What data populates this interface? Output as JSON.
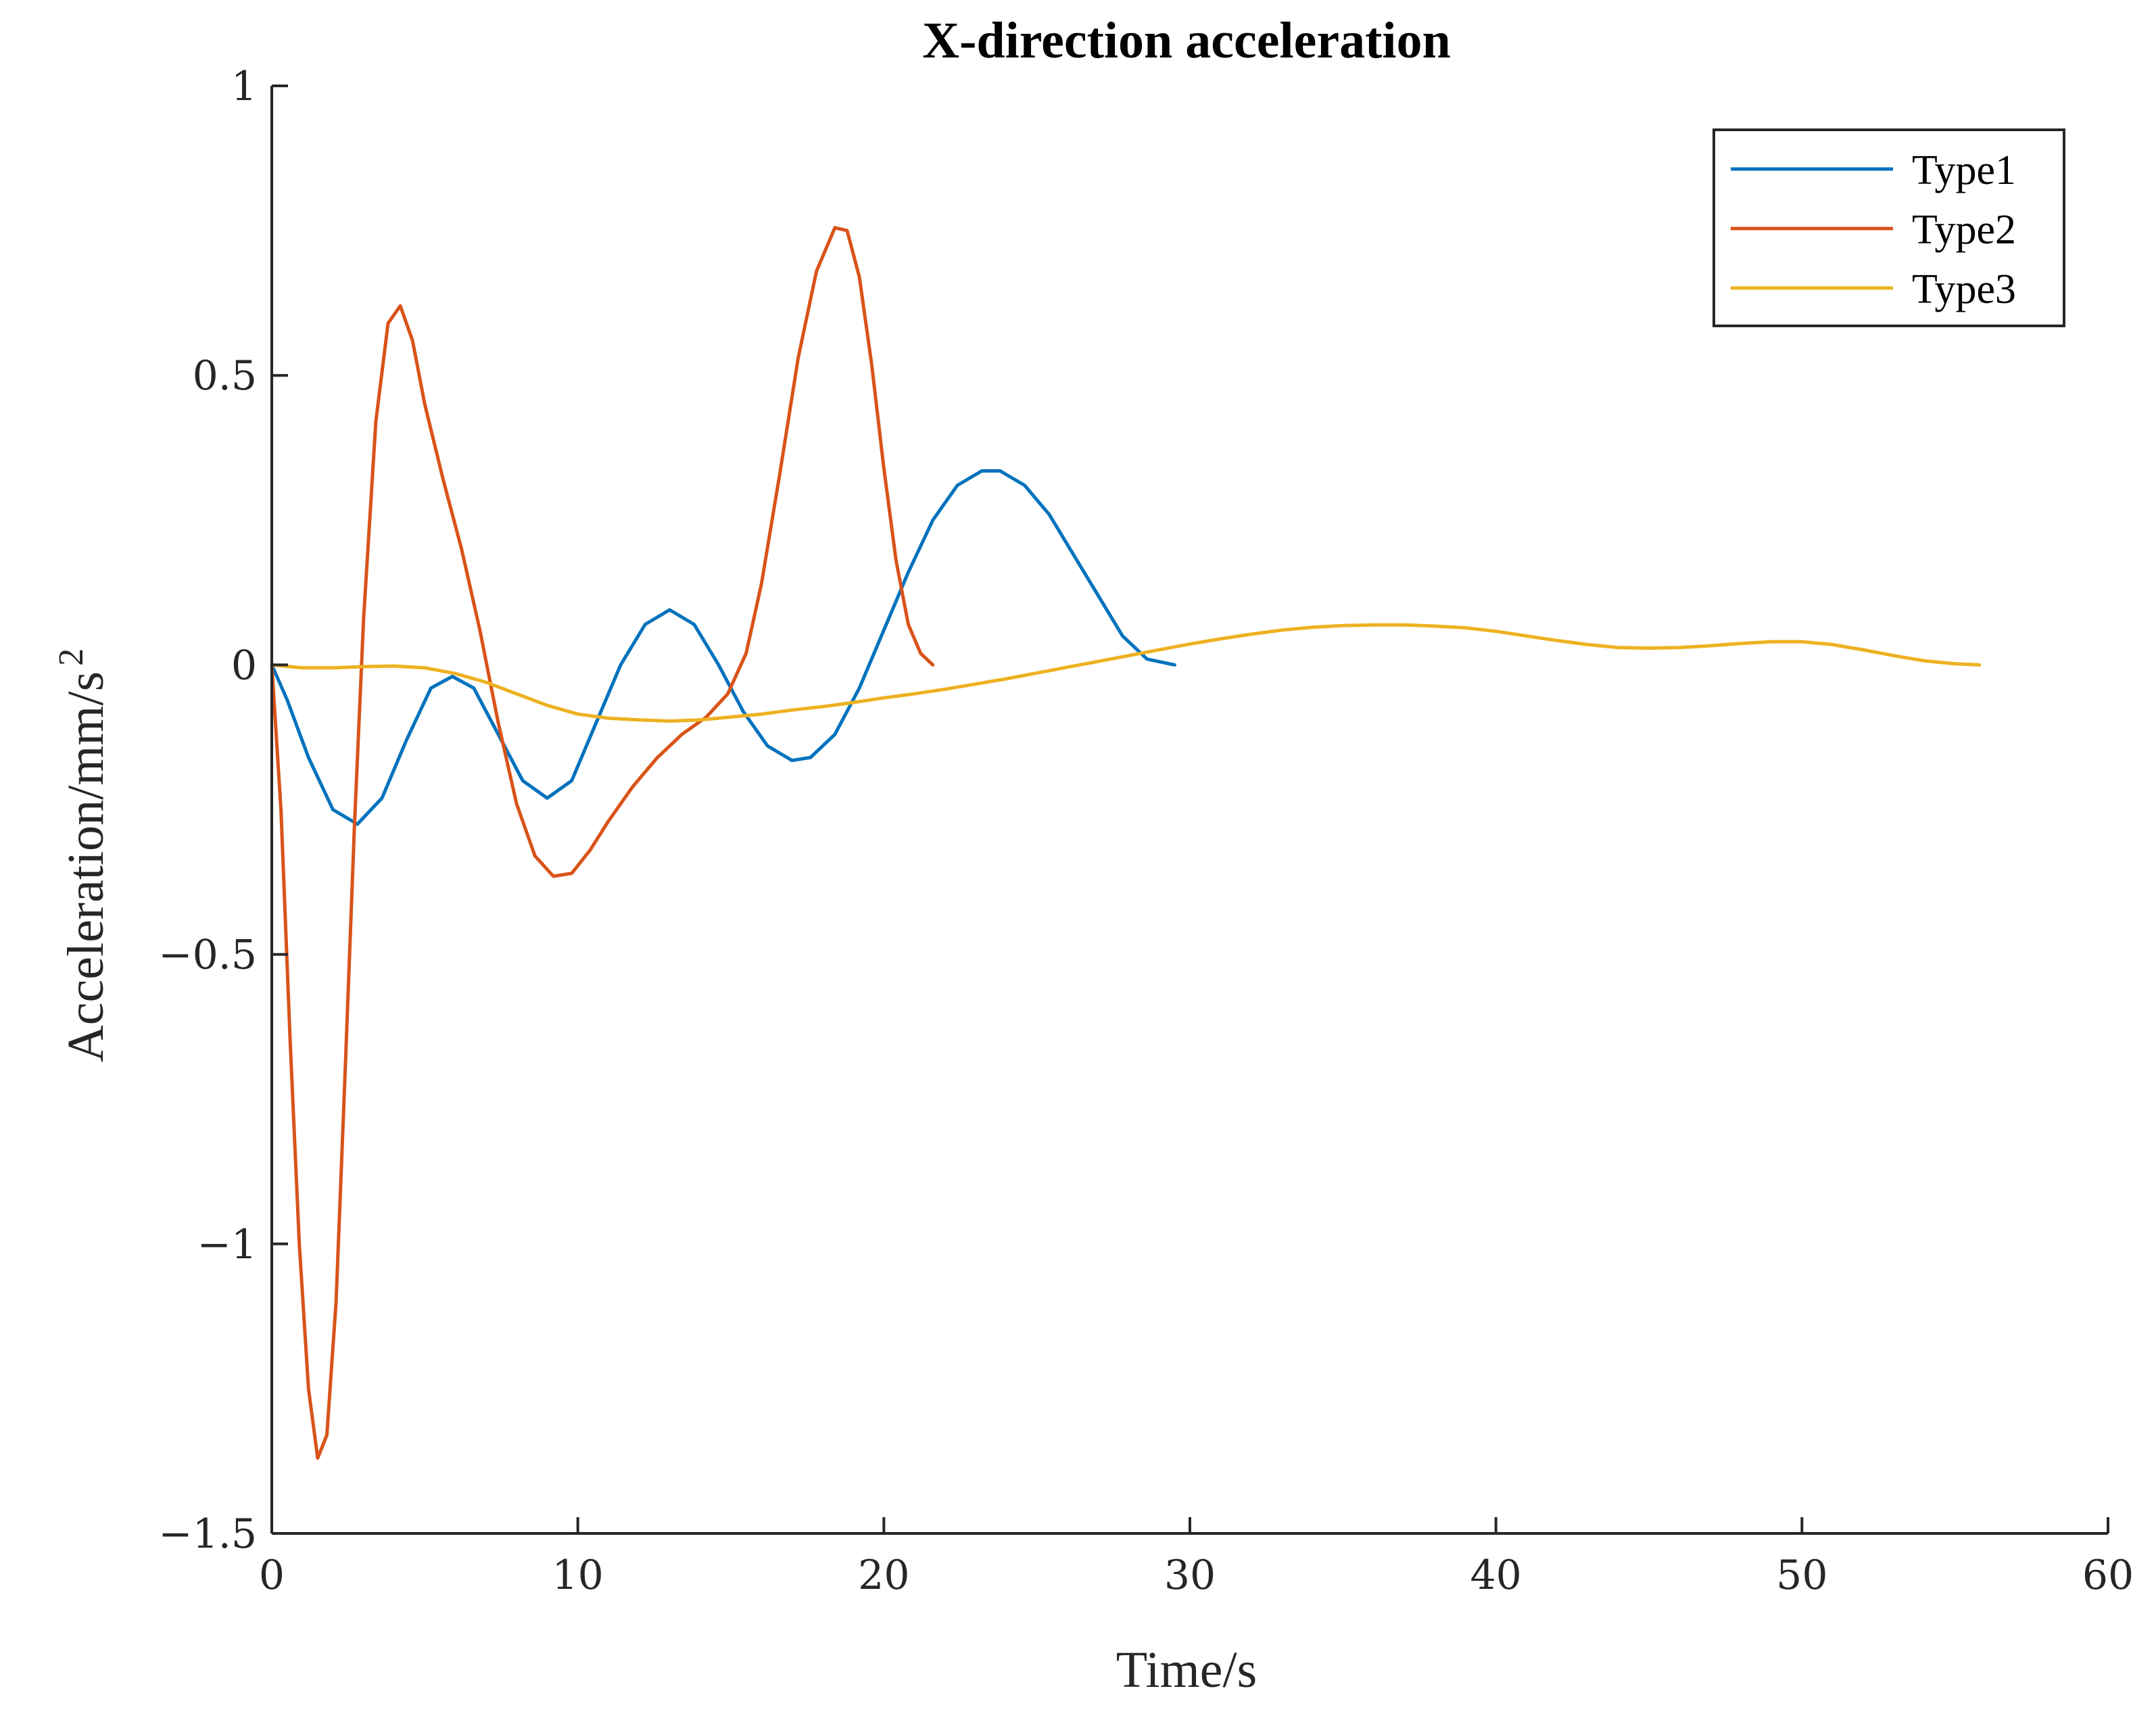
{
  "chart_data": {
    "type": "line",
    "title": "X-direction acceleration",
    "xlabel": "Time/s",
    "ylabel": "Acceleration/mm/s",
    "ylabel_superscript": "2",
    "xlim": [
      0,
      60
    ],
    "ylim": [
      -1.5,
      1
    ],
    "xticks": [
      0,
      10,
      20,
      30,
      40,
      50,
      60
    ],
    "xtick_labels": [
      "0",
      "10",
      "20",
      "30",
      "40",
      "50",
      "60"
    ],
    "yticks": [
      -1.5,
      -1,
      -0.5,
      0,
      0.5,
      1
    ],
    "ytick_labels": [
      "−1.5",
      "−1",
      "−0.5",
      "0",
      "0.5",
      "1"
    ],
    "grid": false,
    "legend_position": "top-right",
    "series": [
      {
        "name": "Type1",
        "color": "#0072BD",
        "points": [
          [
            0,
            0
          ],
          [
            0.5,
            -0.06
          ],
          [
            1.2,
            -0.16
          ],
          [
            2.0,
            -0.25
          ],
          [
            2.8,
            -0.275
          ],
          [
            3.6,
            -0.23
          ],
          [
            4.4,
            -0.13
          ],
          [
            5.2,
            -0.04
          ],
          [
            5.9,
            -0.02
          ],
          [
            6.6,
            -0.04
          ],
          [
            7.4,
            -0.12
          ],
          [
            8.2,
            -0.2
          ],
          [
            9.0,
            -0.23
          ],
          [
            9.8,
            -0.2
          ],
          [
            10.6,
            -0.1
          ],
          [
            11.4,
            0.0
          ],
          [
            12.2,
            0.07
          ],
          [
            13.0,
            0.095
          ],
          [
            13.8,
            0.07
          ],
          [
            14.6,
            0.0
          ],
          [
            15.4,
            -0.08
          ],
          [
            16.2,
            -0.14
          ],
          [
            17.0,
            -0.165
          ],
          [
            17.6,
            -0.16
          ],
          [
            18.4,
            -0.12
          ],
          [
            19.2,
            -0.04
          ],
          [
            20.0,
            0.06
          ],
          [
            20.8,
            0.16
          ],
          [
            21.6,
            0.25
          ],
          [
            22.4,
            0.31
          ],
          [
            23.2,
            0.335
          ],
          [
            23.8,
            0.335
          ],
          [
            24.6,
            0.31
          ],
          [
            25.4,
            0.26
          ],
          [
            26.2,
            0.19
          ],
          [
            27.0,
            0.12
          ],
          [
            27.8,
            0.05
          ],
          [
            28.6,
            0.01
          ],
          [
            29.5,
            0.0
          ]
        ]
      },
      {
        "name": "Type2",
        "color": "#D95319",
        "points": [
          [
            0,
            0
          ],
          [
            0.3,
            -0.25
          ],
          [
            0.6,
            -0.65
          ],
          [
            0.9,
            -1.0
          ],
          [
            1.2,
            -1.25
          ],
          [
            1.5,
            -1.37
          ],
          [
            1.8,
            -1.33
          ],
          [
            2.1,
            -1.1
          ],
          [
            2.4,
            -0.7
          ],
          [
            2.7,
            -0.28
          ],
          [
            3.0,
            0.08
          ],
          [
            3.4,
            0.42
          ],
          [
            3.8,
            0.59
          ],
          [
            4.2,
            0.62
          ],
          [
            4.6,
            0.56
          ],
          [
            5.0,
            0.45
          ],
          [
            5.6,
            0.32
          ],
          [
            6.2,
            0.2
          ],
          [
            6.8,
            0.06
          ],
          [
            7.4,
            -0.1
          ],
          [
            8.0,
            -0.24
          ],
          [
            8.6,
            -0.33
          ],
          [
            9.2,
            -0.365
          ],
          [
            9.8,
            -0.36
          ],
          [
            10.4,
            -0.32
          ],
          [
            11.0,
            -0.27
          ],
          [
            11.8,
            -0.21
          ],
          [
            12.6,
            -0.16
          ],
          [
            13.4,
            -0.12
          ],
          [
            14.2,
            -0.09
          ],
          [
            14.9,
            -0.05
          ],
          [
            15.5,
            0.02
          ],
          [
            16.0,
            0.14
          ],
          [
            16.6,
            0.33
          ],
          [
            17.2,
            0.53
          ],
          [
            17.8,
            0.68
          ],
          [
            18.4,
            0.755
          ],
          [
            18.8,
            0.75
          ],
          [
            19.2,
            0.67
          ],
          [
            19.6,
            0.52
          ],
          [
            20.0,
            0.34
          ],
          [
            20.4,
            0.18
          ],
          [
            20.8,
            0.07
          ],
          [
            21.2,
            0.02
          ],
          [
            21.6,
            0.0
          ]
        ]
      },
      {
        "name": "Type3",
        "color": "#EDB120",
        "points": [
          [
            0,
            0
          ],
          [
            1,
            -0.005
          ],
          [
            2,
            -0.005
          ],
          [
            3,
            -0.003
          ],
          [
            4,
            -0.002
          ],
          [
            5,
            -0.005
          ],
          [
            6,
            -0.015
          ],
          [
            7,
            -0.03
          ],
          [
            8,
            -0.05
          ],
          [
            9,
            -0.07
          ],
          [
            10,
            -0.085
          ],
          [
            11,
            -0.092
          ],
          [
            12,
            -0.095
          ],
          [
            13,
            -0.097
          ],
          [
            14,
            -0.095
          ],
          [
            15,
            -0.09
          ],
          [
            16,
            -0.085
          ],
          [
            17,
            -0.078
          ],
          [
            18,
            -0.072
          ],
          [
            19,
            -0.065
          ],
          [
            20,
            -0.057
          ],
          [
            21,
            -0.05
          ],
          [
            22,
            -0.042
          ],
          [
            23,
            -0.033
          ],
          [
            24,
            -0.024
          ],
          [
            25,
            -0.014
          ],
          [
            26,
            -0.004
          ],
          [
            27,
            0.006
          ],
          [
            28,
            0.016
          ],
          [
            29,
            0.026
          ],
          [
            30,
            0.036
          ],
          [
            31,
            0.045
          ],
          [
            32,
            0.053
          ],
          [
            33,
            0.06
          ],
          [
            34,
            0.065
          ],
          [
            35,
            0.068
          ],
          [
            36,
            0.069
          ],
          [
            37,
            0.069
          ],
          [
            38,
            0.067
          ],
          [
            39,
            0.064
          ],
          [
            40,
            0.058
          ],
          [
            41,
            0.05
          ],
          [
            42,
            0.042
          ],
          [
            43,
            0.035
          ],
          [
            44,
            0.03
          ],
          [
            45,
            0.029
          ],
          [
            46,
            0.03
          ],
          [
            47,
            0.033
          ],
          [
            48,
            0.037
          ],
          [
            49,
            0.04
          ],
          [
            50,
            0.04
          ],
          [
            51,
            0.035
          ],
          [
            52,
            0.026
          ],
          [
            53,
            0.016
          ],
          [
            54,
            0.007
          ],
          [
            55,
            0.002
          ],
          [
            55.8,
            0.0
          ]
        ]
      }
    ]
  }
}
